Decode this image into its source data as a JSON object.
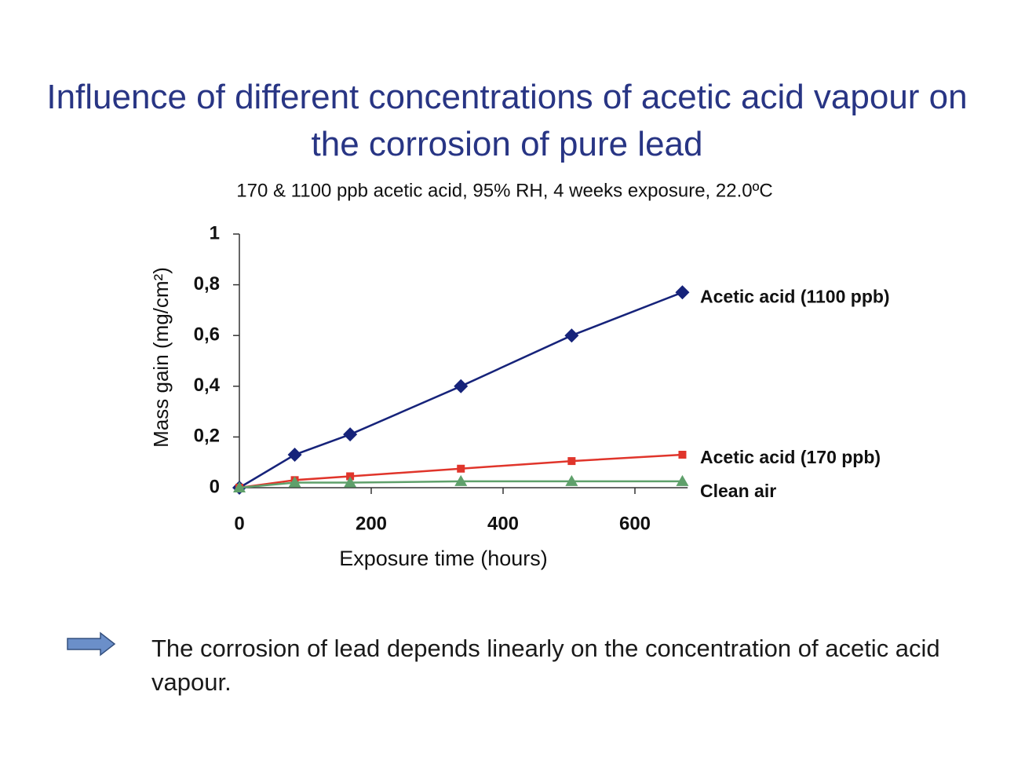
{
  "chart_data": {
    "type": "line",
    "title": "Influence of different concentrations of acetic acid vapour on the corrosion of pure lead",
    "subtitle": "170 & 1100 ppb acetic acid, 95% RH, 4 weeks exposure, 22.0ºC",
    "x_label": "Exposure time (hours)",
    "y_label": "Mass gain (mg/cm²)",
    "x": [
      0,
      84,
      168,
      336,
      504,
      672
    ],
    "series": [
      {
        "name": "Acetic acid (1100 ppb)",
        "color": "#16237a",
        "marker": "diamond",
        "values": [
          0,
          0.13,
          0.21,
          0.4,
          0.6,
          0.77
        ]
      },
      {
        "name": "Acetic acid (170 ppb)",
        "color": "#e0352b",
        "marker": "square",
        "values": [
          0,
          0.03,
          0.045,
          0.075,
          0.105,
          0.13
        ]
      },
      {
        "name": "Clean air",
        "color": "#5fa06b",
        "marker": "triangle",
        "values": [
          0,
          0.02,
          0.02,
          0.025,
          0.025,
          0.025
        ]
      }
    ],
    "xlim": [
      0,
      680
    ],
    "xticks": [
      0,
      200,
      400,
      600
    ],
    "ylim": [
      0,
      1
    ],
    "yticks": [
      0,
      {
        "value": 0.2,
        "label": "0,2"
      },
      {
        "value": 0.4,
        "label": "0,4"
      },
      {
        "value": 0.6,
        "label": "0,6"
      },
      {
        "value": 0.8,
        "label": "0,8"
      },
      1
    ],
    "grid": false
  },
  "note": "The corrosion of lead depends linearly on the concentration of acetic acid vapour."
}
